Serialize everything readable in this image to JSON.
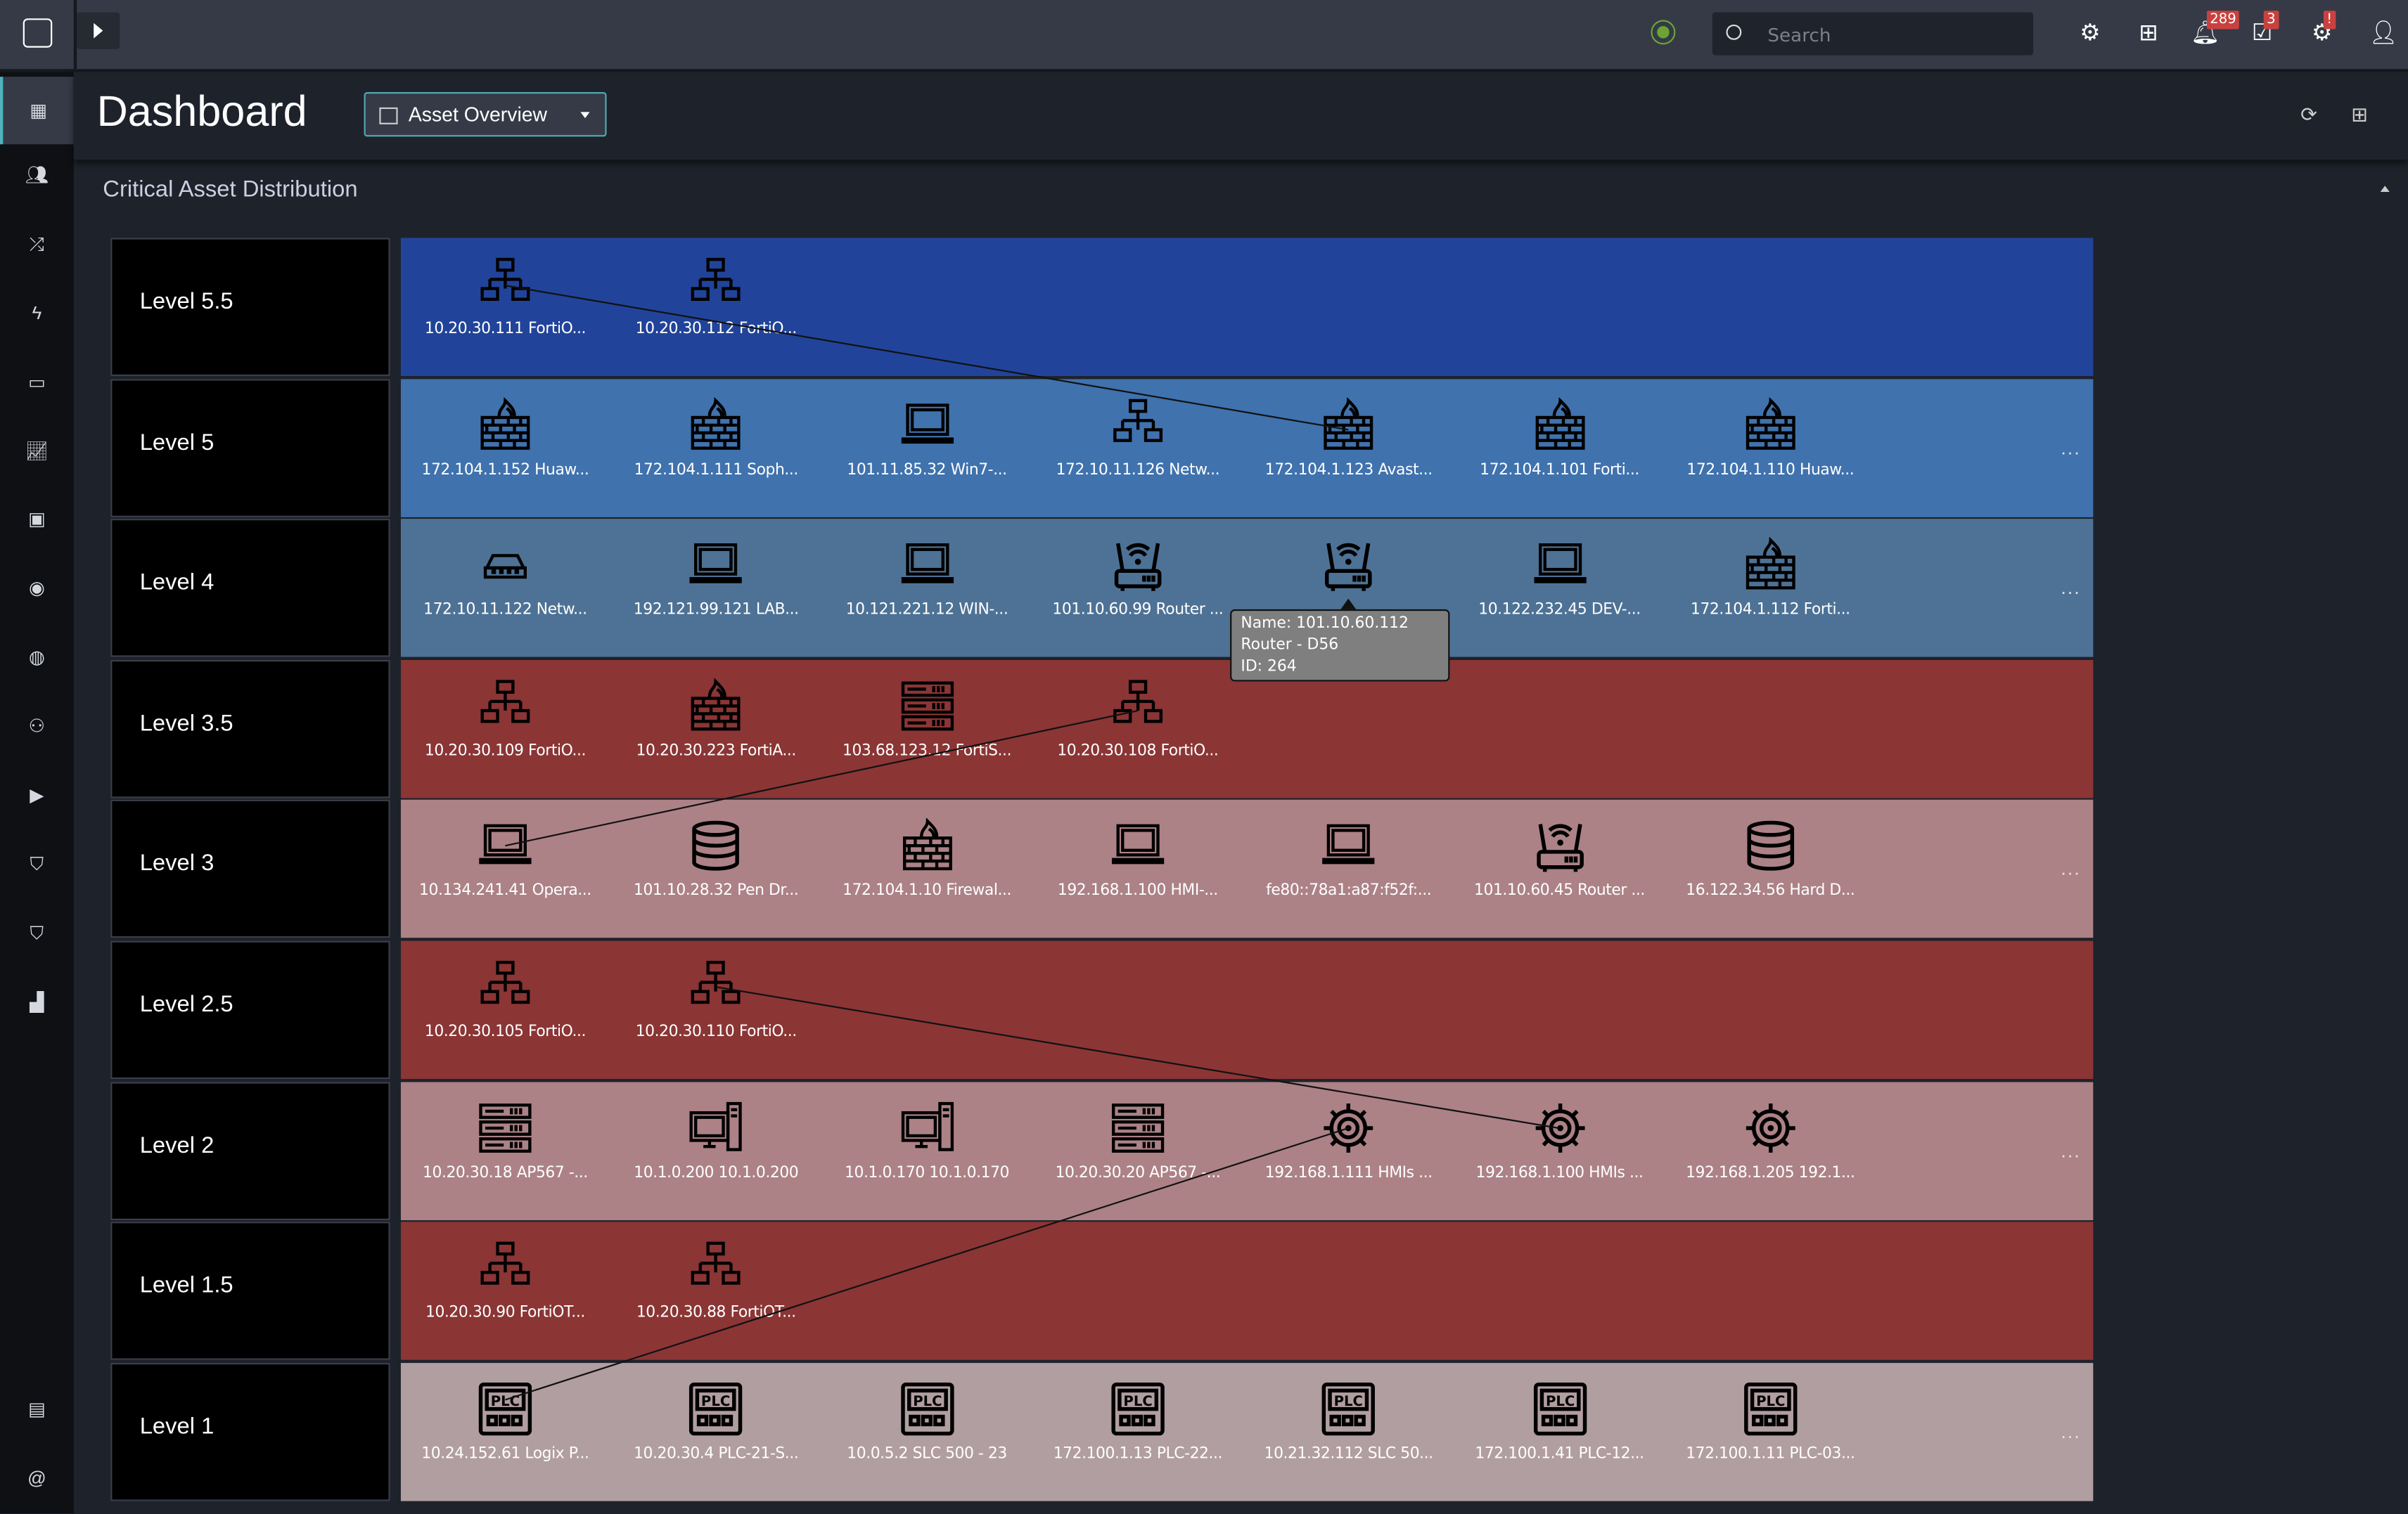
{
  "topbar": {
    "search_placeholder": "Search",
    "notifications_count": "289",
    "tasks_count": "3",
    "system_alert": "!"
  },
  "sidebar": {
    "items": [
      "dashboard-icon",
      "users-group-icon",
      "shuffle-icon",
      "bolt-icon",
      "briefcase-icon",
      "chart-line-icon",
      "apps-icon",
      "shield-target-icon",
      "globe-icon",
      "people-icon",
      "play-icon",
      "shield-check-icon",
      "shield-icon",
      "bar-chart-icon",
      "clipboard-icon",
      "at-icon"
    ]
  },
  "header": {
    "title": "Dashboard",
    "dropdown_label": "Asset Overview"
  },
  "section": {
    "title": "Critical Asset Distribution"
  },
  "colors": {
    "level_5_5": "#21449a",
    "level_5": "#4072ad",
    "level_4": "#4e7295",
    "level_3_5": "#8b3535",
    "level_3": "#ac8286",
    "level_2_5": "#8b3535",
    "level_2": "#ac8286",
    "level_1_5": "#8b3535",
    "level_1": "#b19ea1",
    "accent": "#4fb2bd"
  },
  "rows": [
    {
      "label": "Level 5.5",
      "color": "#21449a",
      "more": false,
      "assets": [
        {
          "label": "10.20.30.111 FortiO...",
          "icon": "network"
        },
        {
          "label": "10.20.30.112 FortiO...",
          "icon": "network"
        }
      ]
    },
    {
      "label": "Level 5",
      "color": "#4072ad",
      "more": true,
      "assets": [
        {
          "label": "172.104.1.152 Huaw...",
          "icon": "firewall"
        },
        {
          "label": "172.104.1.111 Soph...",
          "icon": "firewall"
        },
        {
          "label": "101.11.85.32 Win7-...",
          "icon": "laptop"
        },
        {
          "label": "172.10.11.126 Netw...",
          "icon": "network"
        },
        {
          "label": "172.104.1.123 Avast...",
          "icon": "firewall"
        },
        {
          "label": "172.104.1.101 Forti...",
          "icon": "firewall"
        },
        {
          "label": "172.104.1.110 Huaw...",
          "icon": "firewall"
        }
      ]
    },
    {
      "label": "Level 4",
      "color": "#4e7295",
      "more": true,
      "assets": [
        {
          "label": "172.10.11.122 Netw...",
          "icon": "switch"
        },
        {
          "label": "192.121.99.121 LAB...",
          "icon": "laptop"
        },
        {
          "label": "10.121.221.12 WIN-...",
          "icon": "laptop"
        },
        {
          "label": "101.10.60.99 Router ...",
          "icon": "router"
        },
        {
          "label": "",
          "icon": "router"
        },
        {
          "label": "10.122.232.45 DEV-...",
          "icon": "laptop"
        },
        {
          "label": "172.104.1.112 Forti...",
          "icon": "firewall"
        }
      ]
    },
    {
      "label": "Level 3.5",
      "color": "#8b3535",
      "more": false,
      "assets": [
        {
          "label": "10.20.30.109 FortiO...",
          "icon": "network"
        },
        {
          "label": "10.20.30.223 FortiA...",
          "icon": "firewall"
        },
        {
          "label": "103.68.123.12 FortiS...",
          "icon": "server"
        },
        {
          "label": "10.20.30.108 FortiO...",
          "icon": "network"
        }
      ]
    },
    {
      "label": "Level 3",
      "color": "#ac8286",
      "more": true,
      "assets": [
        {
          "label": "10.134.241.41 Opera...",
          "icon": "laptop"
        },
        {
          "label": "101.10.28.32 Pen Dr...",
          "icon": "database"
        },
        {
          "label": "172.104.1.10 Firewal...",
          "icon": "firewall"
        },
        {
          "label": "192.168.1.100 HMI-...",
          "icon": "laptop"
        },
        {
          "label": "fe80::78a1:a87:f52f:...",
          "icon": "laptop"
        },
        {
          "label": "101.10.60.45 Router ...",
          "icon": "router"
        },
        {
          "label": "16.122.34.56 Hard D...",
          "icon": "database"
        }
      ]
    },
    {
      "label": "Level 2.5",
      "color": "#8b3535",
      "more": false,
      "assets": [
        {
          "label": "10.20.30.105 FortiO...",
          "icon": "network"
        },
        {
          "label": "10.20.30.110 FortiO...",
          "icon": "network"
        }
      ]
    },
    {
      "label": "Level 2",
      "color": "#ac8286",
      "more": true,
      "assets": [
        {
          "label": "10.20.30.18 AP567 -...",
          "icon": "server"
        },
        {
          "label": "10.1.0.200 10.1.0.200",
          "icon": "desktop"
        },
        {
          "label": "10.1.0.170 10.1.0.170",
          "icon": "desktop"
        },
        {
          "label": "10.20.30.20 AP567 -...",
          "icon": "server"
        },
        {
          "label": "192.168.1.111 HMIs ...",
          "icon": "gear"
        },
        {
          "label": "192.168.1.100 HMIs ...",
          "icon": "gear"
        },
        {
          "label": "192.168.1.205 192.1...",
          "icon": "gear"
        }
      ]
    },
    {
      "label": "Level 1.5",
      "color": "#8b3535",
      "more": false,
      "assets": [
        {
          "label": "10.20.30.90 FortiOT...",
          "icon": "network"
        },
        {
          "label": "10.20.30.88 FortiOT...",
          "icon": "network"
        }
      ]
    },
    {
      "label": "Level 1",
      "color": "#b19ea1",
      "more": true,
      "assets": [
        {
          "label": "10.24.152.61 Logix P...",
          "icon": "plc"
        },
        {
          "label": "10.20.30.4 PLC-21-S...",
          "icon": "plc"
        },
        {
          "label": "10.0.5.2 SLC 500 - 23",
          "icon": "plc"
        },
        {
          "label": "172.100.1.13 PLC-22...",
          "icon": "plc"
        },
        {
          "label": "10.21.32.112 SLC 50...",
          "icon": "plc"
        },
        {
          "label": "172.100.1.41 PLC-12...",
          "icon": "plc"
        },
        {
          "label": "172.100.1.11 PLC-03...",
          "icon": "plc"
        }
      ]
    }
  ],
  "more_label": "...",
  "tooltip": {
    "line1": "Name: 101.10.60.112",
    "line2": "Router - D56",
    "line3": "ID: 264"
  }
}
